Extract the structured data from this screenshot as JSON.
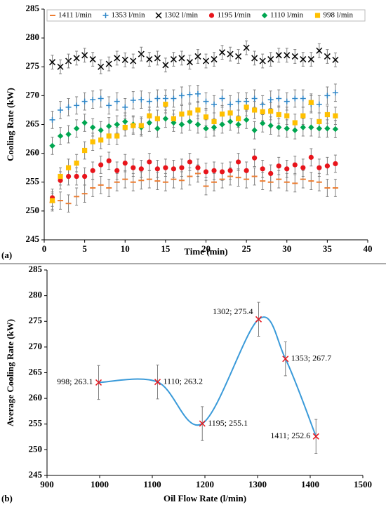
{
  "chart_data": [
    {
      "type": "scatter",
      "label": "(a)",
      "x_label": "Time (min)",
      "y_label": "Cooling  Rate (kW)",
      "x": [
        1,
        2,
        3,
        4,
        5,
        6,
        7,
        8,
        9,
        10,
        11,
        12,
        13,
        14,
        15,
        16,
        17,
        18,
        19,
        20,
        21,
        22,
        23,
        24,
        25,
        26,
        27,
        28,
        29,
        30,
        31,
        32,
        33,
        34,
        35,
        36
      ],
      "xlim": [
        0,
        40
      ],
      "xticks": [
        0,
        5,
        10,
        15,
        20,
        25,
        30,
        35,
        40
      ],
      "ylim": [
        245,
        285
      ],
      "yticks": [
        245,
        250,
        255,
        260,
        265,
        270,
        275,
        280,
        285
      ],
      "error_color": "#808080",
      "series": [
        {
          "name": "1411 l/min",
          "color": "#ed7d31",
          "marker": "dash",
          "error": 1.5,
          "values": [
            251.5,
            251.8,
            251.3,
            252.5,
            253,
            254,
            254.5,
            254,
            255,
            255.5,
            255,
            255.3,
            255.5,
            255.2,
            255,
            255.5,
            255.3,
            256,
            256.5,
            254.3,
            255,
            255.5,
            256,
            255.8,
            255.5,
            256,
            255.2,
            255,
            255.5,
            255,
            254.8,
            255.5,
            255.2,
            255,
            254,
            254
          ]
        },
        {
          "name": "1353 l/min",
          "color": "#2e86c8",
          "marker": "plus",
          "error": 1.5,
          "values": [
            265.8,
            267.5,
            268,
            268.3,
            269,
            269.3,
            269.5,
            268.3,
            269,
            268,
            269.2,
            269.3,
            269,
            269.5,
            269.5,
            269.5,
            270,
            270.2,
            270.3,
            269,
            268.5,
            269.5,
            268.5,
            269,
            269,
            269.5,
            268.5,
            269.3,
            269.5,
            269,
            269.5,
            269.5,
            268.5,
            268.5,
            270,
            270.5
          ]
        },
        {
          "name": "1302 l/min",
          "color": "#000000",
          "marker": "x",
          "error": 1.2,
          "values": [
            275.8,
            275,
            276,
            276.5,
            277,
            276.3,
            275,
            275.5,
            276.5,
            276.2,
            276,
            277.2,
            276.3,
            276.5,
            275.3,
            276.3,
            276.5,
            275.8,
            276.8,
            276,
            276.3,
            277.5,
            277.2,
            276.8,
            278.3,
            276.5,
            276,
            276.3,
            277,
            277,
            276.8,
            276.3,
            276.3,
            277.8,
            276.8,
            276.2
          ]
        },
        {
          "name": "1195 l/min",
          "color": "#e8141b",
          "marker": "circle",
          "error": 1.5,
          "values": [
            252.3,
            255.3,
            256,
            256,
            256,
            257,
            258,
            258.7,
            257,
            258.3,
            257.5,
            257.3,
            258.5,
            257.3,
            257.5,
            257.3,
            257.5,
            258.5,
            257.5,
            256.8,
            257,
            256.8,
            257,
            258.5,
            257,
            259.2,
            257.3,
            256.5,
            257.8,
            257.3,
            258,
            257.5,
            259.3,
            257.5,
            257.8,
            258.2
          ]
        },
        {
          "name": "1110 l/min",
          "color": "#00a650",
          "marker": "diamond",
          "error": 1.5,
          "values": [
            261.3,
            263,
            263.3,
            264.3,
            265.3,
            264.5,
            264,
            264.7,
            265,
            265.5,
            265,
            264.5,
            265.3,
            264.3,
            266,
            265.3,
            265,
            265.5,
            265,
            264.3,
            264.5,
            265,
            265.5,
            265,
            265.8,
            264,
            265.2,
            264.8,
            264.5,
            264.3,
            264,
            264.5,
            264.5,
            264.3,
            264.3,
            264.2
          ]
        },
        {
          "name": "998 l/min",
          "color": "#ffc000",
          "marker": "square",
          "error": 1.5,
          "values": [
            251.8,
            256,
            257.5,
            258.3,
            260.5,
            262,
            262.3,
            263,
            263,
            264.5,
            264.8,
            264.8,
            266.5,
            266,
            268.5,
            266,
            266.8,
            267,
            267.5,
            266.3,
            265.5,
            266.8,
            267,
            266,
            268,
            267.5,
            267.2,
            267.3,
            266.7,
            266.5,
            265.3,
            266.5,
            268.8,
            265.5,
            266.7,
            266.5
          ]
        }
      ]
    },
    {
      "type": "line",
      "label": "(b)",
      "x_label": "Oil Flow Rate (l/min)",
      "y_label": "Average Cooling  Rate (kW)",
      "x": [
        998,
        1110,
        1195,
        1302,
        1353,
        1411
      ],
      "values": [
        263.1,
        263.2,
        255.1,
        275.4,
        267.7,
        252.6
      ],
      "value_labels": [
        "998; 263.1",
        "1110; 263.2",
        "1195; 255.1",
        "1302; 275.4",
        "1353; 267.7",
        "1411; 252.6"
      ],
      "error": 3.3,
      "color": "#3a9ad9",
      "marker_color": "#e8141b",
      "error_color": "#808080",
      "xlim": [
        900,
        1500
      ],
      "xticks": [
        900,
        1000,
        1100,
        1200,
        1300,
        1400,
        1500
      ],
      "ylim": [
        245,
        285
      ],
      "yticks": [
        245,
        250,
        255,
        260,
        265,
        270,
        275,
        280,
        285
      ]
    }
  ]
}
